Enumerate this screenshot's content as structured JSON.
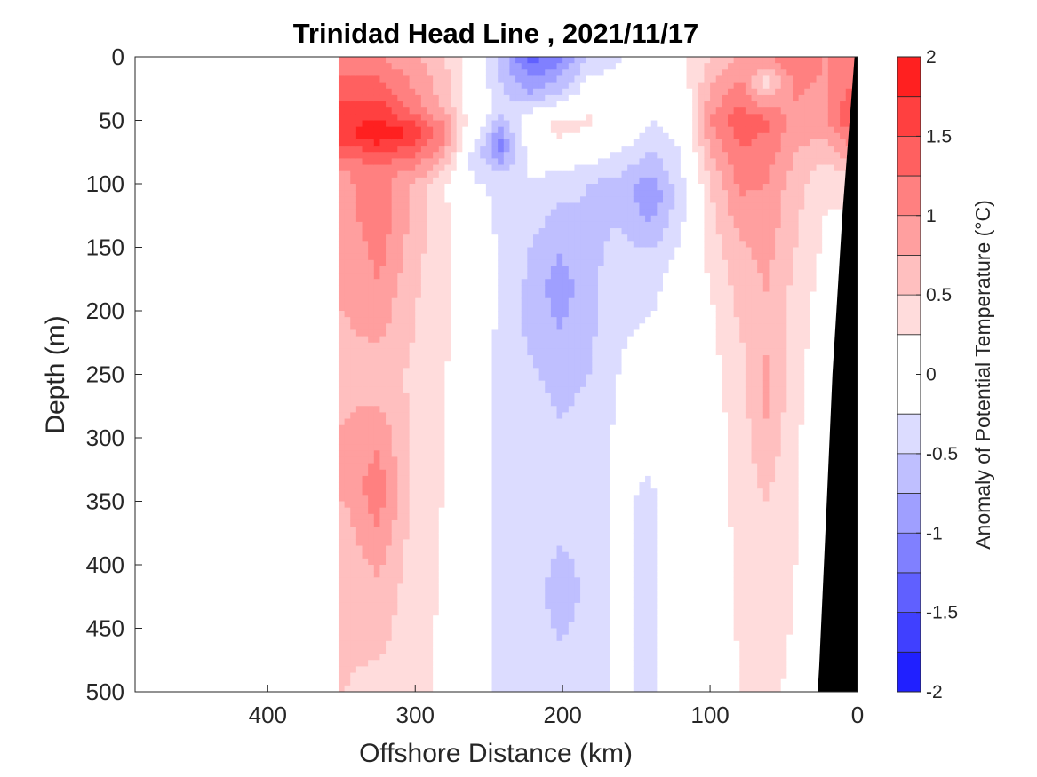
{
  "chart_data": {
    "type": "heatmap",
    "title": "Trinidad Head Line , 2021/11/17",
    "xlabel": "Offshore Distance (km)",
    "ylabel": "Depth (m)",
    "xlim": [
      490,
      0
    ],
    "x_reversed": true,
    "ylim": [
      0,
      500
    ],
    "y_reversed": true,
    "x_ticks": [
      "400",
      "300",
      "200",
      "100",
      "0"
    ],
    "x_tick_values": [
      400,
      300,
      200,
      100,
      0
    ],
    "y_ticks": [
      "0",
      "50",
      "100",
      "150",
      "200",
      "250",
      "300",
      "350",
      "400",
      "450",
      "500"
    ],
    "y_tick_values": [
      0,
      50,
      100,
      150,
      200,
      250,
      300,
      350,
      400,
      450,
      500
    ],
    "data_extent_km": [
      352,
      0
    ],
    "colorbar": {
      "label": "Anomaly of Potential Temperature (°C)",
      "range": [
        -2,
        2
      ],
      "ticks": [
        "2",
        "1.5",
        "1",
        "0.5",
        "0",
        "-0.5",
        "-1",
        "-1.5",
        "-2"
      ],
      "tick_values": [
        2,
        1.5,
        1,
        0.5,
        0,
        -0.5,
        -1,
        -1.5,
        -2
      ],
      "levels": [
        -2,
        -1.75,
        -1.5,
        -1.25,
        -1,
        -0.75,
        -0.5,
        -0.25,
        0.25,
        0.5,
        0.75,
        1,
        1.25,
        1.5,
        1.75,
        2
      ],
      "colors_low_to_high": [
        "#0000ff",
        "#2020ff",
        "#4040ff",
        "#6060ff",
        "#8080ff",
        "#9f9fff",
        "#bfbfff",
        "#dcdcff",
        "#ffffff",
        "#ffdcdc",
        "#ffbfbf",
        "#ff9f9f",
        "#ff8080",
        "#ff6060",
        "#ff4040",
        "#ff2020",
        "#ff0000"
      ],
      "zero_contour_color": "#000000"
    },
    "bathymetry_color": "#000000",
    "columns": [
      {
        "x": 347,
        "profile": [
          [
            0,
            1.0
          ],
          [
            40,
            1.6
          ],
          [
            60,
            1.7
          ],
          [
            90,
            1.0
          ],
          [
            150,
            0.8
          ],
          [
            250,
            0.7
          ],
          [
            330,
            0.8
          ],
          [
            400,
            0.6
          ],
          [
            500,
            0.5
          ]
        ]
      },
      {
        "x": 325,
        "profile": [
          [
            0,
            1.0
          ],
          [
            40,
            1.6
          ],
          [
            60,
            2.0
          ],
          [
            90,
            1.1
          ],
          [
            130,
            1.2
          ],
          [
            200,
            0.9
          ],
          [
            250,
            0.6
          ],
          [
            340,
            1.2
          ],
          [
            400,
            0.8
          ],
          [
            500,
            0.4
          ]
        ]
      },
      {
        "x": 300,
        "profile": [
          [
            0,
            0.8
          ],
          [
            40,
            1.1
          ],
          [
            60,
            1.7
          ],
          [
            100,
            0.7
          ],
          [
            200,
            0.5
          ],
          [
            300,
            0.4
          ],
          [
            500,
            0.3
          ]
        ]
      },
      {
        "x": 280,
        "profile": [
          [
            0,
            0.5
          ],
          [
            40,
            0.7
          ],
          [
            60,
            1.1
          ],
          [
            100,
            0.3
          ],
          [
            200,
            0.3
          ],
          [
            300,
            0.25
          ],
          [
            500,
            0.2
          ]
        ]
      },
      {
        "x": 262,
        "profile": [
          [
            0,
            0.1
          ],
          [
            50,
            0.1
          ],
          [
            80,
            -0.3
          ],
          [
            150,
            0.0
          ],
          [
            300,
            0.0
          ],
          [
            500,
            -0.1
          ]
        ]
      },
      {
        "x": 242,
        "profile": [
          [
            0,
            -0.6
          ],
          [
            40,
            -0.4
          ],
          [
            70,
            -1.1
          ],
          [
            100,
            -0.3
          ],
          [
            200,
            -0.3
          ],
          [
            300,
            -0.4
          ],
          [
            500,
            -0.3
          ]
        ]
      },
      {
        "x": 222,
        "profile": [
          [
            0,
            -1.4
          ],
          [
            30,
            -0.7
          ],
          [
            55,
            0.1
          ],
          [
            100,
            -0.3
          ],
          [
            150,
            -0.5
          ],
          [
            200,
            -0.6
          ],
          [
            300,
            -0.3
          ],
          [
            500,
            -0.3
          ]
        ]
      },
      {
        "x": 202,
        "profile": [
          [
            0,
            -1.1
          ],
          [
            30,
            -0.5
          ],
          [
            55,
            0.4
          ],
          [
            100,
            -0.4
          ],
          [
            180,
            -0.9
          ],
          [
            250,
            -0.6
          ],
          [
            350,
            -0.3
          ],
          [
            420,
            -0.7
          ],
          [
            500,
            -0.3
          ]
        ]
      },
      {
        "x": 182,
        "profile": [
          [
            0,
            -0.5
          ],
          [
            50,
            0.3
          ],
          [
            100,
            -0.5
          ],
          [
            200,
            -0.6
          ],
          [
            300,
            -0.4
          ],
          [
            500,
            -0.4
          ]
        ]
      },
      {
        "x": 162,
        "profile": [
          [
            0,
            -0.3
          ],
          [
            50,
            0.1
          ],
          [
            100,
            -0.6
          ],
          [
            200,
            -0.3
          ],
          [
            300,
            -0.2
          ],
          [
            500,
            -0.2
          ]
        ]
      },
      {
        "x": 140,
        "profile": [
          [
            0,
            0.0
          ],
          [
            60,
            -0.3
          ],
          [
            110,
            -1.0
          ],
          [
            160,
            -0.4
          ],
          [
            250,
            -0.1
          ],
          [
            350,
            -0.3
          ],
          [
            500,
            -0.3
          ]
        ]
      },
      {
        "x": 120,
        "profile": [
          [
            0,
            0.2
          ],
          [
            60,
            -0.2
          ],
          [
            110,
            -0.4
          ],
          [
            180,
            -0.1
          ],
          [
            300,
            0.0
          ],
          [
            500,
            -0.1
          ]
        ]
      },
      {
        "x": 100,
        "profile": [
          [
            0,
            0.5
          ],
          [
            50,
            1.0
          ],
          [
            100,
            0.5
          ],
          [
            200,
            0.2
          ],
          [
            300,
            0.1
          ],
          [
            500,
            0.0
          ]
        ]
      },
      {
        "x": 80,
        "profile": [
          [
            0,
            0.8
          ],
          [
            50,
            1.4
          ],
          [
            80,
            1.2
          ],
          [
            150,
            0.7
          ],
          [
            250,
            0.4
          ],
          [
            500,
            0.25
          ]
        ]
      },
      {
        "x": 62,
        "profile": [
          [
            0,
            1.0
          ],
          [
            20,
            0.4
          ],
          [
            50,
            1.3
          ],
          [
            100,
            1.0
          ],
          [
            200,
            0.7
          ],
          [
            270,
            0.8
          ],
          [
            350,
            0.5
          ],
          [
            500,
            0.3
          ]
        ]
      },
      {
        "x": 42,
        "profile": [
          [
            0,
            1.2
          ],
          [
            50,
            0.9
          ],
          [
            100,
            0.6
          ],
          [
            200,
            0.4
          ],
          [
            300,
            0.3
          ],
          [
            500,
            0.2
          ]
        ]
      },
      {
        "x": 22,
        "profile": [
          [
            0,
            1.0
          ],
          [
            50,
            0.9
          ],
          [
            100,
            0.3
          ],
          [
            200,
            0.1
          ],
          [
            300,
            0.0
          ],
          [
            500,
            0.0
          ]
        ]
      },
      {
        "x": 8,
        "profile": [
          [
            0,
            1.1
          ],
          [
            50,
            1.4
          ],
          [
            100,
            0.3
          ],
          [
            200,
            0.0
          ],
          [
            500,
            0.0
          ]
        ]
      }
    ],
    "bathymetry": [
      [
        0,
        0
      ],
      [
        2,
        0
      ],
      [
        10,
        120
      ],
      [
        17,
        250
      ],
      [
        22,
        380
      ],
      [
        26,
        480
      ],
      [
        27,
        500
      ],
      [
        0,
        500
      ]
    ]
  }
}
